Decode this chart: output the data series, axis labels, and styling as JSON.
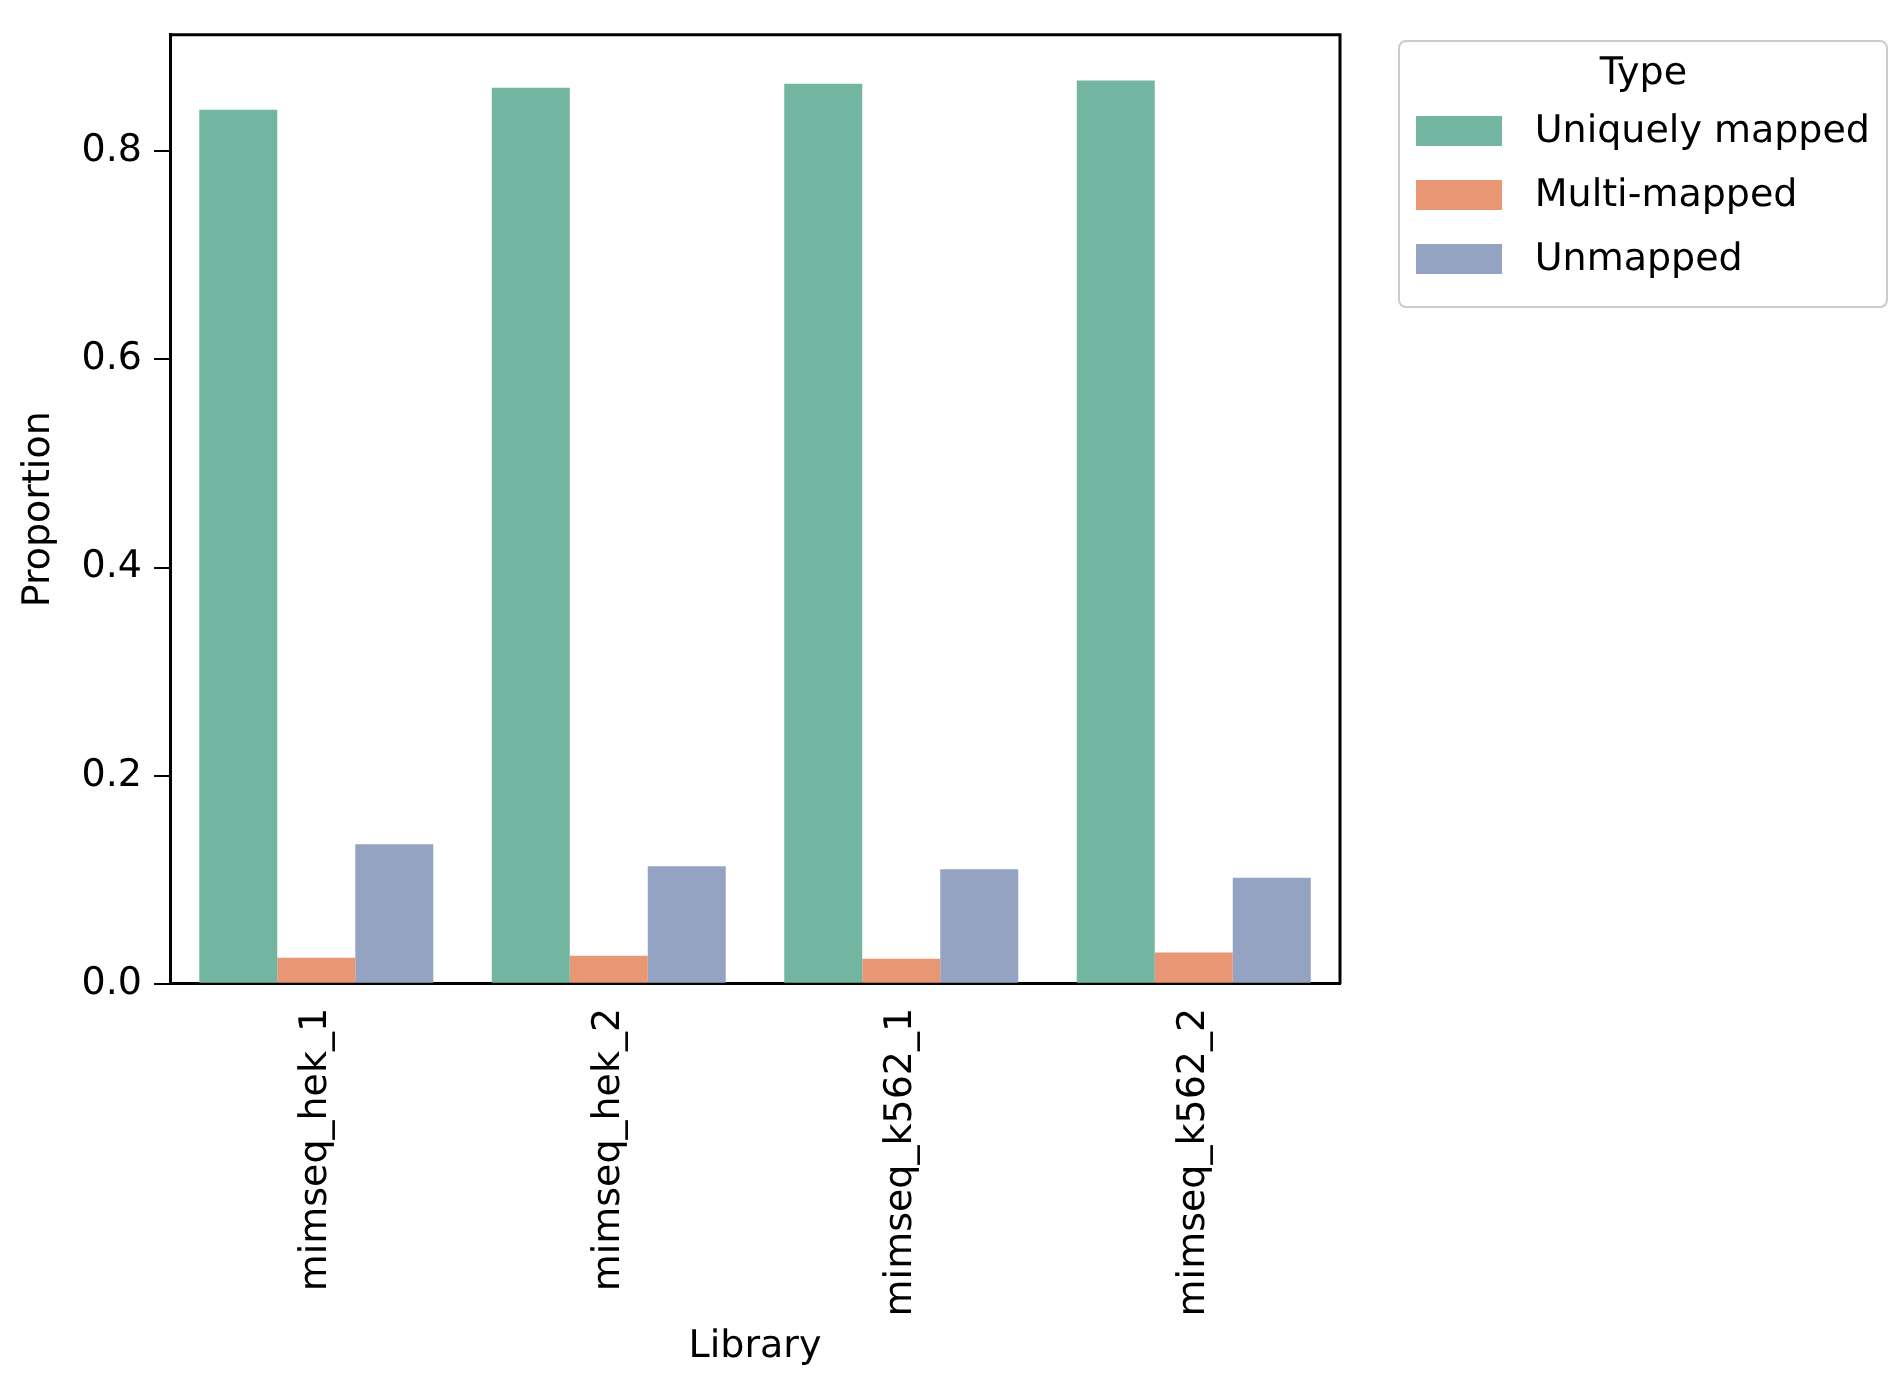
{
  "chart_data": {
    "type": "bar",
    "xlabel": "Library",
    "ylabel": "Proportion",
    "legend_title": "Type",
    "legend": "right",
    "categories": [
      "mimseq_hek_1",
      "mimseq_hek_2",
      "mimseq_k562_1",
      "mimseq_k562_2"
    ],
    "series": [
      {
        "name": "Uniquely mapped",
        "color": "#72b6a1",
        "values": [
          0.84,
          0.861,
          0.865,
          0.868
        ]
      },
      {
        "name": "Multi-mapped",
        "color": "#e99675",
        "values": [
          0.025,
          0.027,
          0.024,
          0.03
        ]
      },
      {
        "name": "Unmapped",
        "color": "#95a3c3",
        "values": [
          0.134,
          0.113,
          0.11,
          0.102
        ]
      }
    ],
    "ylim": [
      0,
      0.912
    ],
    "yticks": [
      {
        "value": 0,
        "label": "0.0"
      },
      {
        "value": 0.2,
        "label": "0.2"
      },
      {
        "value": 0.4,
        "label": "0.4"
      },
      {
        "value": 0.6,
        "label": "0.6"
      },
      {
        "value": 0.8,
        "label": "0.8"
      }
    ],
    "grid": false
  }
}
